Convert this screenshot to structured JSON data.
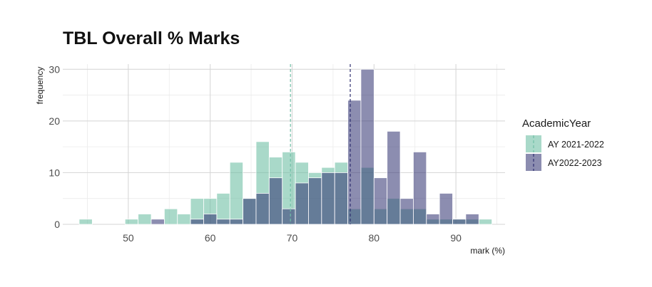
{
  "chart_data": {
    "type": "histogram",
    "title": "TBL Overall % Marks",
    "xlabel": "mark (%)",
    "ylabel": "frequency",
    "xlim": [
      42,
      96
    ],
    "ylim": [
      0,
      31
    ],
    "bin_width": 1.6,
    "x_ticks": [
      50,
      60,
      70,
      80,
      90
    ],
    "y_ticks": [
      0,
      10,
      20,
      30
    ],
    "grid": true,
    "legend": {
      "title": "AcademicYear",
      "position": "right"
    },
    "series": [
      {
        "name": "AY 2021-2022",
        "color": "#6fbfa5",
        "opacity": 0.6,
        "mean": 69.8,
        "bins": [
          [
            44.0,
            1
          ],
          [
            49.6,
            1
          ],
          [
            51.2,
            2
          ],
          [
            54.4,
            3
          ],
          [
            56.0,
            2
          ],
          [
            57.6,
            5
          ],
          [
            59.2,
            5
          ],
          [
            60.8,
            6
          ],
          [
            62.4,
            12
          ],
          [
            64.0,
            5
          ],
          [
            65.6,
            16
          ],
          [
            67.2,
            13
          ],
          [
            68.8,
            14
          ],
          [
            70.4,
            12
          ],
          [
            72.0,
            10
          ],
          [
            73.6,
            11
          ],
          [
            75.2,
            12
          ],
          [
            76.8,
            3
          ],
          [
            78.4,
            11
          ],
          [
            80.0,
            3
          ],
          [
            81.6,
            5
          ],
          [
            83.2,
            3
          ],
          [
            84.8,
            3
          ],
          [
            86.4,
            1
          ],
          [
            88.0,
            1
          ],
          [
            89.6,
            1
          ],
          [
            91.2,
            1
          ],
          [
            92.8,
            1
          ]
        ]
      },
      {
        "name": "AY2022-2023",
        "color": "#2e3070",
        "opacity": 0.55,
        "mean": 77.1,
        "bins": [
          [
            52.8,
            1
          ],
          [
            57.6,
            1
          ],
          [
            59.2,
            2
          ],
          [
            60.8,
            1
          ],
          [
            62.4,
            1
          ],
          [
            64.0,
            5
          ],
          [
            65.6,
            6
          ],
          [
            67.2,
            9
          ],
          [
            68.8,
            3
          ],
          [
            70.4,
            8
          ],
          [
            72.0,
            9
          ],
          [
            73.6,
            10
          ],
          [
            75.2,
            10
          ],
          [
            76.8,
            24
          ],
          [
            78.4,
            30
          ],
          [
            80.0,
            9
          ],
          [
            81.6,
            18
          ],
          [
            83.2,
            5
          ],
          [
            84.8,
            14
          ],
          [
            86.4,
            2
          ],
          [
            88.0,
            6
          ],
          [
            89.6,
            1
          ],
          [
            91.2,
            2
          ]
        ]
      }
    ]
  }
}
